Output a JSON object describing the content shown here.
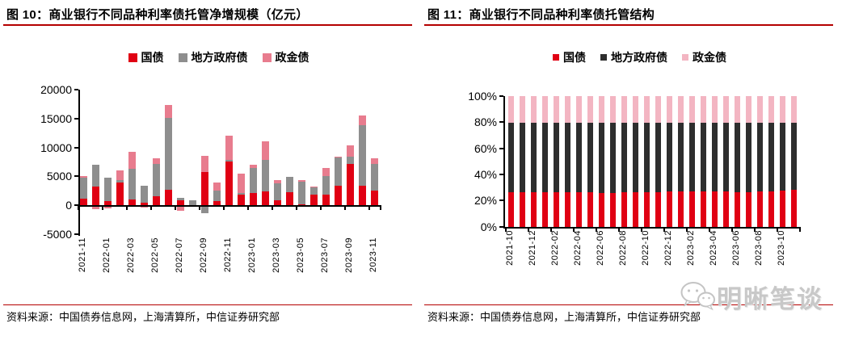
{
  "colors": {
    "accent_rule": "#b40000",
    "text": "#000000"
  },
  "watermark": {
    "text": "明晰笔谈",
    "icon": "wechat-icon",
    "color": "#c8c8c8"
  },
  "panels": [
    {
      "title": "图 10：商业银行不同品种利率债托管净增规模（亿元）",
      "source": "资料来源：中国债券信息网，上海清算所，中信证券研究部"
    },
    {
      "title": "图 11：商业银行不同品种利率债托管结构",
      "source": "资料来源：中国债券信息网，上海清算所，中信证券研究部"
    }
  ],
  "chart_data": [
    {
      "type": "bar",
      "stacked": true,
      "title": "商业银行不同品种利率债托管净增规模（亿元）",
      "unit": "亿元",
      "grid": false,
      "legend_position": "top",
      "ylim": [
        -5000,
        20000
      ],
      "yticks": [
        "20000",
        "15000",
        "10000",
        "5000",
        "0",
        "-5000"
      ],
      "categories": [
        "2021-11",
        "2021-12",
        "2022-01",
        "2022-02",
        "2022-03",
        "2022-04",
        "2022-05",
        "2022-06",
        "2022-07",
        "2022-08",
        "2022-09",
        "2022-10",
        "2022-11",
        "2022-12",
        "2023-01",
        "2023-02",
        "2023-03",
        "2023-04",
        "2023-05",
        "2023-06",
        "2023-07",
        "2023-08",
        "2023-09",
        "2023-10",
        "2023-11"
      ],
      "xtick_every": 2,
      "series": [
        {
          "name": "国债",
          "color": "#e00013",
          "values": [
            1200,
            3300,
            700,
            4000,
            1000,
            500,
            1600,
            2700,
            900,
            -300,
            5700,
            700,
            7600,
            1900,
            2100,
            2400,
            900,
            2200,
            200,
            1800,
            1800,
            3400,
            7200,
            3400,
            2500
          ]
        },
        {
          "name": "地方政府债",
          "color": "#8e8e8e",
          "values": [
            3600,
            3700,
            4100,
            300,
            5300,
            2900,
            5500,
            12400,
            400,
            800,
            -1400,
            1900,
            300,
            200,
            4400,
            5400,
            2900,
            2700,
            3900,
            1300,
            3200,
            4800,
            1200,
            10400,
            4600
          ]
        },
        {
          "name": "政金债",
          "color": "#e87c8e",
          "values": [
            300,
            -700,
            -500,
            1700,
            2900,
            -400,
            1000,
            2200,
            -1000,
            0,
            2800,
            1400,
            4100,
            3400,
            500,
            3300,
            600,
            -300,
            200,
            100,
            1500,
            200,
            1900,
            1700,
            1000
          ]
        }
      ]
    },
    {
      "type": "bar",
      "stacked": true,
      "percent": true,
      "title": "商业银行不同品种利率债托管结构",
      "grid": false,
      "legend_position": "top",
      "ylim": [
        0,
        100
      ],
      "yticks": [
        "100%",
        "80%",
        "60%",
        "40%",
        "20%",
        "0%"
      ],
      "categories": [
        "2021-10",
        "2021-11",
        "2021-12",
        "2022-01",
        "2022-02",
        "2022-03",
        "2022-04",
        "2022-05",
        "2022-06",
        "2022-07",
        "2022-08",
        "2022-09",
        "2022-10",
        "2022-11",
        "2022-12",
        "2023-01",
        "2023-02",
        "2023-03",
        "2023-04",
        "2023-05",
        "2023-06",
        "2023-07",
        "2023-08",
        "2023-09",
        "2023-10",
        "2023-11"
      ],
      "xtick_every": 2,
      "series": [
        {
          "name": "国债",
          "color": "#e00013",
          "values": [
            26.4,
            26.5,
            26.6,
            26.7,
            26.5,
            26.4,
            26.3,
            26.2,
            26.0,
            26.0,
            26.1,
            26.2,
            26.4,
            26.6,
            26.8,
            27.0,
            27.1,
            27.0,
            26.9,
            26.8,
            26.7,
            26.7,
            26.9,
            27.2,
            27.8,
            28.3
          ]
        },
        {
          "name": "地方政府债",
          "color": "#2e2e2e",
          "values": [
            52.9,
            52.8,
            52.8,
            52.7,
            52.9,
            53.0,
            53.1,
            53.2,
            53.4,
            53.3,
            53.2,
            53.1,
            53.0,
            52.9,
            52.8,
            52.6,
            52.5,
            52.6,
            52.7,
            52.8,
            52.9,
            52.8,
            52.7,
            52.5,
            52.0,
            51.6
          ]
        },
        {
          "name": "政金债",
          "color": "#f3b5c2",
          "values": [
            20.7,
            20.7,
            20.6,
            20.6,
            20.6,
            20.6,
            20.6,
            20.6,
            20.6,
            20.7,
            20.7,
            20.7,
            20.6,
            20.5,
            20.4,
            20.4,
            20.4,
            20.4,
            20.4,
            20.4,
            20.4,
            20.5,
            20.4,
            20.3,
            20.2,
            20.1
          ]
        }
      ]
    }
  ]
}
